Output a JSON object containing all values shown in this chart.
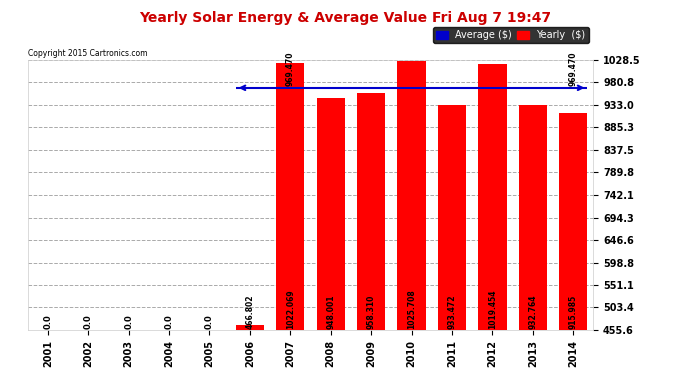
{
  "title": "Yearly Solar Energy & Average Value Fri Aug 7 19:47",
  "copyright": "Copyright 2015 Cartronics.com",
  "categories": [
    "2001",
    "2002",
    "2003",
    "2004",
    "2005",
    "2006",
    "2007",
    "2008",
    "2009",
    "2010",
    "2011",
    "2012",
    "2013",
    "2014"
  ],
  "values": [
    0.0,
    0.0,
    0.0,
    0.0,
    0.0,
    466.802,
    1022.069,
    948.001,
    958.31,
    1025.708,
    933.472,
    1019.454,
    932.764,
    915.985
  ],
  "bar_color": "#ff0000",
  "average_value": 969.47,
  "ylim_min": 455.6,
  "ylim_max": 1028.5,
  "yticks": [
    455.6,
    503.4,
    551.1,
    598.8,
    646.6,
    694.3,
    742.1,
    789.8,
    837.5,
    885.3,
    933.0,
    980.8,
    1028.5
  ],
  "ytick_labels": [
    "455.6",
    "503.4",
    "551.1",
    "598.8",
    "646.6",
    "694.3",
    "742.1",
    "789.8",
    "837.5",
    "885.3",
    "933.0",
    "980.8",
    "1028.5"
  ],
  "bar_label_values": [
    "0.0",
    "0.0",
    "0.0",
    "0.0",
    "0.0",
    "466.802",
    "1022.069",
    "948.001",
    "958.310",
    "1025.708",
    "933.472",
    "1019.454",
    "932.764",
    "915.985"
  ],
  "average_label": "969.470",
  "legend_avg_color": "#0000cc",
  "legend_bar_color": "#ff0000",
  "legend_avg_text": "Average ($)",
  "legend_bar_text": "Yearly  ($)",
  "background_color": "#ffffff",
  "grid_color": "#aaaaaa",
  "title_color": "#cc0000",
  "bar_width": 0.7
}
